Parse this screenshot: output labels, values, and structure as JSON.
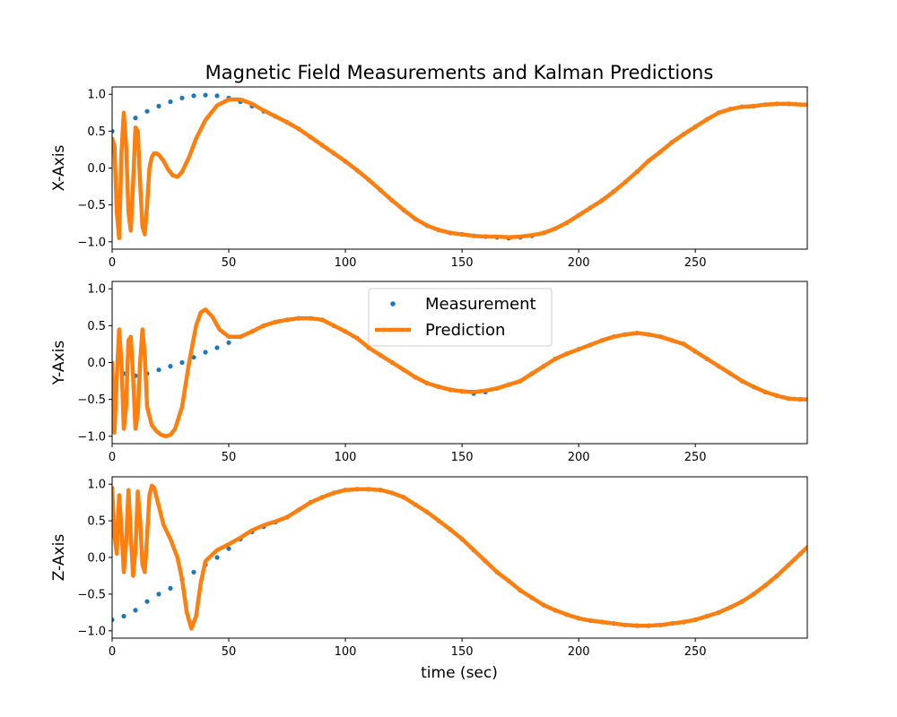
{
  "chart_data": {
    "type": "scatter",
    "title": "Magnetic Field Measurements and Kalman Predictions",
    "xlabel": "time (sec)",
    "xlim": [
      0,
      298
    ],
    "ylim": [
      -1.1,
      1.1
    ],
    "xticks": [
      0,
      50,
      100,
      150,
      200,
      250
    ],
    "yticks": [
      -1.0,
      -0.5,
      0.0,
      0.5,
      1.0
    ],
    "legend": {
      "placement": "upper center of middle panel",
      "entries": [
        {
          "label": "Measurement",
          "style": "dots",
          "color": "#1f77b4"
        },
        {
          "label": "Prediction",
          "style": "thick line",
          "color": "#ff7f0e"
        }
      ]
    },
    "subplots": [
      {
        "ylabel": "X-Axis",
        "series": [
          {
            "name": "Measurement",
            "x": [
              0,
              5,
              10,
              15,
              20,
              25,
              30,
              35,
              40,
              45,
              50,
              55,
              60,
              65,
              70,
              75,
              80,
              85,
              90,
              95,
              100,
              105,
              110,
              115,
              120,
              125,
              130,
              135,
              140,
              145,
              150,
              155,
              160,
              165,
              170,
              175,
              180,
              185,
              190,
              195,
              200,
              205,
              210,
              215,
              220,
              225,
              230,
              235,
              240,
              245,
              250,
              255,
              260,
              265,
              270,
              275,
              280,
              285,
              290,
              295
            ],
            "y": [
              0.5,
              0.6,
              0.68,
              0.77,
              0.84,
              0.9,
              0.95,
              0.98,
              0.99,
              0.98,
              0.95,
              0.9,
              0.84,
              0.77,
              0.7,
              0.62,
              0.53,
              0.42,
              0.31,
              0.2,
              0.09,
              -0.03,
              -0.16,
              -0.3,
              -0.44,
              -0.57,
              -0.69,
              -0.78,
              -0.84,
              -0.88,
              -0.9,
              -0.92,
              -0.93,
              -0.94,
              -0.95,
              -0.94,
              -0.92,
              -0.88,
              -0.82,
              -0.74,
              -0.64,
              -0.54,
              -0.44,
              -0.32,
              -0.19,
              -0.05,
              0.1,
              0.22,
              0.35,
              0.46,
              0.56,
              0.66,
              0.75,
              0.8,
              0.83,
              0.84,
              0.86,
              0.87,
              0.87,
              0.86
            ]
          },
          {
            "name": "Prediction",
            "x": [
              0,
              1,
              2,
              3,
              4,
              5,
              6,
              7,
              8,
              9,
              10,
              11,
              12,
              13,
              14,
              15,
              16,
              17,
              18,
              19,
              20,
              22,
              24,
              26,
              28,
              30,
              33,
              36,
              40,
              45,
              50,
              55,
              60,
              65,
              70,
              75,
              80,
              85,
              90,
              95,
              100,
              105,
              110,
              115,
              120,
              125,
              130,
              135,
              140,
              145,
              150,
              155,
              160,
              165,
              170,
              175,
              180,
              185,
              190,
              195,
              200,
              205,
              210,
              215,
              220,
              225,
              230,
              235,
              240,
              245,
              250,
              255,
              260,
              265,
              270,
              275,
              280,
              285,
              290,
              295,
              298
            ],
            "y": [
              0.4,
              0.3,
              -0.6,
              -0.95,
              0.2,
              0.75,
              0.3,
              -0.6,
              -0.85,
              -0.2,
              0.55,
              0.5,
              -0.2,
              -0.8,
              -0.9,
              -0.5,
              0.0,
              0.15,
              0.2,
              0.2,
              0.18,
              0.1,
              -0.02,
              -0.1,
              -0.12,
              -0.05,
              0.15,
              0.4,
              0.65,
              0.85,
              0.93,
              0.93,
              0.87,
              0.78,
              0.7,
              0.62,
              0.53,
              0.42,
              0.31,
              0.2,
              0.09,
              -0.03,
              -0.16,
              -0.3,
              -0.44,
              -0.57,
              -0.69,
              -0.78,
              -0.84,
              -0.88,
              -0.9,
              -0.92,
              -0.93,
              -0.93,
              -0.94,
              -0.93,
              -0.91,
              -0.88,
              -0.82,
              -0.74,
              -0.64,
              -0.54,
              -0.44,
              -0.32,
              -0.19,
              -0.05,
              0.1,
              0.22,
              0.35,
              0.46,
              0.56,
              0.66,
              0.75,
              0.8,
              0.83,
              0.84,
              0.86,
              0.87,
              0.87,
              0.86,
              0.86
            ]
          }
        ]
      },
      {
        "ylabel": "Y-Axis",
        "series": [
          {
            "name": "Measurement",
            "x": [
              0,
              5,
              10,
              15,
              20,
              25,
              30,
              35,
              40,
              45,
              50,
              55,
              60,
              65,
              70,
              75,
              80,
              85,
              90,
              95,
              100,
              105,
              110,
              115,
              120,
              125,
              130,
              135,
              140,
              145,
              150,
              155,
              160,
              165,
              170,
              175,
              180,
              185,
              190,
              195,
              200,
              205,
              210,
              215,
              220,
              225,
              230,
              235,
              240,
              245,
              250,
              255,
              260,
              265,
              270,
              275,
              280,
              285,
              290,
              295
            ],
            "y": [
              -0.1,
              -0.15,
              -0.18,
              -0.15,
              -0.1,
              -0.05,
              0.0,
              0.07,
              0.14,
              0.2,
              0.27,
              0.35,
              0.42,
              0.5,
              0.55,
              0.58,
              0.6,
              0.6,
              0.58,
              0.5,
              0.42,
              0.33,
              0.2,
              0.1,
              0.0,
              -0.1,
              -0.2,
              -0.28,
              -0.33,
              -0.37,
              -0.39,
              -0.42,
              -0.4,
              -0.35,
              -0.3,
              -0.25,
              -0.15,
              -0.05,
              0.05,
              0.12,
              0.18,
              0.24,
              0.3,
              0.35,
              0.38,
              0.4,
              0.38,
              0.35,
              0.3,
              0.25,
              0.15,
              0.05,
              -0.05,
              -0.15,
              -0.25,
              -0.33,
              -0.4,
              -0.45,
              -0.49,
              -0.5
            ]
          },
          {
            "name": "Prediction",
            "x": [
              0,
              1,
              2,
              3,
              4,
              5,
              6,
              7,
              8,
              9,
              10,
              11,
              12,
              13,
              14,
              15,
              17,
              19,
              21,
              23,
              25,
              27,
              30,
              33,
              36,
              38,
              40,
              43,
              46,
              50,
              55,
              60,
              65,
              70,
              75,
              80,
              85,
              90,
              95,
              100,
              105,
              110,
              115,
              120,
              125,
              130,
              135,
              140,
              145,
              150,
              155,
              160,
              165,
              170,
              175,
              180,
              185,
              190,
              195,
              200,
              205,
              210,
              215,
              220,
              225,
              230,
              235,
              240,
              245,
              250,
              255,
              260,
              265,
              270,
              275,
              280,
              285,
              290,
              295,
              298
            ],
            "y": [
              0.0,
              -0.95,
              -0.2,
              0.45,
              0.0,
              -0.9,
              -0.6,
              0.3,
              0.35,
              -0.2,
              -0.9,
              -0.7,
              0.0,
              0.45,
              0.1,
              -0.6,
              -0.85,
              -0.93,
              -0.98,
              -1.0,
              -0.98,
              -0.9,
              -0.6,
              0.0,
              0.5,
              0.68,
              0.72,
              0.62,
              0.45,
              0.35,
              0.35,
              0.42,
              0.5,
              0.55,
              0.58,
              0.6,
              0.6,
              0.58,
              0.5,
              0.42,
              0.33,
              0.2,
              0.1,
              0.0,
              -0.1,
              -0.2,
              -0.28,
              -0.33,
              -0.37,
              -0.39,
              -0.4,
              -0.38,
              -0.35,
              -0.3,
              -0.25,
              -0.15,
              -0.05,
              0.05,
              0.12,
              0.18,
              0.24,
              0.3,
              0.35,
              0.38,
              0.4,
              0.38,
              0.35,
              0.3,
              0.25,
              0.15,
              0.05,
              -0.05,
              -0.15,
              -0.25,
              -0.33,
              -0.4,
              -0.45,
              -0.49,
              -0.5,
              -0.5
            ]
          }
        ]
      },
      {
        "ylabel": "Z-Axis",
        "series": [
          {
            "name": "Measurement",
            "x": [
              0,
              5,
              10,
              15,
              20,
              25,
              30,
              35,
              40,
              45,
              50,
              55,
              60,
              65,
              70,
              75,
              80,
              85,
              90,
              95,
              100,
              105,
              110,
              115,
              120,
              125,
              130,
              135,
              140,
              145,
              150,
              155,
              160,
              165,
              170,
              175,
              180,
              185,
              190,
              195,
              200,
              205,
              210,
              215,
              220,
              225,
              230,
              235,
              240,
              245,
              250,
              255,
              260,
              265,
              270,
              275,
              280,
              285,
              290,
              295
            ],
            "y": [
              -0.85,
              -0.8,
              -0.72,
              -0.6,
              -0.5,
              -0.42,
              -0.3,
              -0.2,
              -0.1,
              0.0,
              0.12,
              0.25,
              0.35,
              0.42,
              0.48,
              0.55,
              0.65,
              0.75,
              0.82,
              0.88,
              0.92,
              0.93,
              0.93,
              0.92,
              0.88,
              0.82,
              0.72,
              0.62,
              0.5,
              0.38,
              0.25,
              0.1,
              -0.05,
              -0.2,
              -0.32,
              -0.45,
              -0.55,
              -0.65,
              -0.72,
              -0.78,
              -0.83,
              -0.86,
              -0.88,
              -0.9,
              -0.92,
              -0.93,
              -0.93,
              -0.92,
              -0.9,
              -0.88,
              -0.85,
              -0.8,
              -0.75,
              -0.68,
              -0.6,
              -0.5,
              -0.38,
              -0.25,
              -0.1,
              0.05
            ]
          },
          {
            "name": "Prediction",
            "x": [
              0,
              1,
              2,
              3,
              4,
              5,
              6,
              7,
              8,
              9,
              10,
              11,
              12,
              13,
              14,
              15,
              16,
              17,
              18,
              20,
              22,
              25,
              28,
              30,
              32,
              34,
              36,
              38,
              40,
              45,
              50,
              55,
              60,
              65,
              70,
              75,
              80,
              85,
              90,
              95,
              100,
              105,
              110,
              115,
              120,
              125,
              130,
              135,
              140,
              145,
              150,
              155,
              160,
              165,
              170,
              175,
              180,
              185,
              190,
              195,
              200,
              205,
              210,
              215,
              220,
              225,
              230,
              235,
              240,
              245,
              250,
              255,
              260,
              265,
              270,
              275,
              280,
              285,
              290,
              295,
              298
            ],
            "y": [
              0.95,
              0.3,
              0.05,
              0.85,
              0.4,
              -0.2,
              0.2,
              0.92,
              0.3,
              -0.25,
              0.1,
              0.9,
              0.5,
              -0.1,
              -0.2,
              0.3,
              0.85,
              0.98,
              0.95,
              0.7,
              0.45,
              0.25,
              0.0,
              -0.3,
              -0.75,
              -0.97,
              -0.8,
              -0.35,
              -0.05,
              0.1,
              0.18,
              0.27,
              0.37,
              0.44,
              0.49,
              0.55,
              0.65,
              0.75,
              0.82,
              0.88,
              0.92,
              0.93,
              0.93,
              0.92,
              0.88,
              0.82,
              0.72,
              0.62,
              0.5,
              0.38,
              0.25,
              0.1,
              -0.05,
              -0.2,
              -0.32,
              -0.45,
              -0.55,
              -0.65,
              -0.72,
              -0.78,
              -0.83,
              -0.86,
              -0.88,
              -0.9,
              -0.92,
              -0.93,
              -0.93,
              -0.92,
              -0.9,
              -0.88,
              -0.85,
              -0.8,
              -0.75,
              -0.68,
              -0.6,
              -0.5,
              -0.38,
              -0.25,
              -0.1,
              0.05,
              0.14
            ]
          }
        ]
      }
    ],
    "colors": {
      "measurement": "#1f77b4",
      "prediction": "#ff7f0e"
    }
  }
}
